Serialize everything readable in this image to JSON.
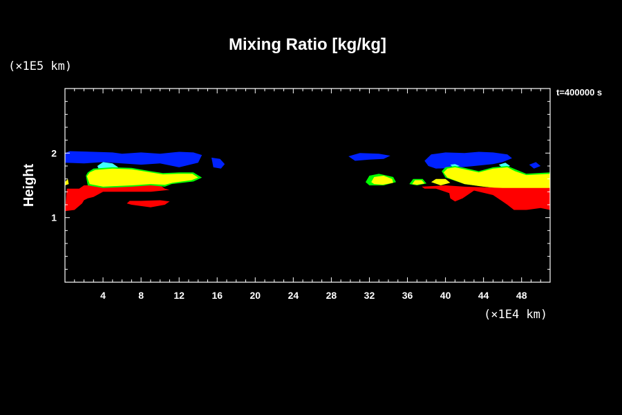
{
  "chart_data": {
    "type": "heatmap",
    "title": "Mixing Ratio [kg/kg]",
    "xlabel": "",
    "ylabel": "Height",
    "x_unit": "(×1E4 km)",
    "y_unit": "(×1E5 km)",
    "time_label": "t=400000 s",
    "xlim": [
      0,
      51
    ],
    "ylim": [
      0,
      3
    ],
    "x_ticks": [
      4,
      8,
      12,
      16,
      20,
      24,
      28,
      32,
      36,
      40,
      44,
      48
    ],
    "y_ticks": [
      1,
      2
    ],
    "background": "#000000",
    "axis_color": "#ffffff",
    "colors": {
      "blue": "#0022ff",
      "cyan": "#40ffff",
      "green": "#00ff00",
      "yellow": "#ffff00",
      "red": "#ff0000"
    },
    "regions": [
      {
        "color": "red",
        "points": [
          [
            0,
            1.1
          ],
          [
            0.2,
            1.45
          ],
          [
            1.5,
            1.45
          ],
          [
            2,
            1.5
          ],
          [
            10,
            1.5
          ],
          [
            10.5,
            1.45
          ],
          [
            11,
            1.43
          ],
          [
            9,
            1.4
          ],
          [
            6,
            1.4
          ],
          [
            4,
            1.4
          ],
          [
            3,
            1.32
          ],
          [
            2.4,
            1.3
          ],
          [
            2,
            1.27
          ],
          [
            1.8,
            1.22
          ],
          [
            1,
            1.12
          ]
        ]
      },
      {
        "color": "red",
        "points": [
          [
            6.5,
            1.22
          ],
          [
            7,
            1.2
          ],
          [
            9,
            1.16
          ],
          [
            10.5,
            1.2
          ],
          [
            11,
            1.25
          ],
          [
            10,
            1.27
          ],
          [
            8,
            1.26
          ],
          [
            6.8,
            1.26
          ]
        ]
      },
      {
        "color": "blue",
        "points": [
          [
            0,
            2
          ],
          [
            0.5,
            2.03
          ],
          [
            3,
            2.02
          ],
          [
            5,
            2.01
          ],
          [
            6,
            1.99
          ],
          [
            8,
            2.01
          ],
          [
            10,
            1.99
          ],
          [
            12,
            2.02
          ],
          [
            13.5,
            2.01
          ],
          [
            14.4,
            1.97
          ],
          [
            14,
            1.85
          ],
          [
            12,
            1.78
          ],
          [
            10,
            1.84
          ],
          [
            8,
            1.82
          ],
          [
            6,
            1.84
          ],
          [
            4,
            1.86
          ],
          [
            2,
            1.84
          ],
          [
            0,
            1.85
          ]
        ]
      },
      {
        "color": "blue",
        "points": [
          [
            15.4,
            1.93
          ],
          [
            16.3,
            1.91
          ],
          [
            16.8,
            1.83
          ],
          [
            16.4,
            1.76
          ],
          [
            15.6,
            1.78
          ]
        ]
      },
      {
        "color": "cyan",
        "points": [
          [
            3.4,
            1.8
          ],
          [
            4,
            1.86
          ],
          [
            5,
            1.84
          ],
          [
            5.6,
            1.78
          ],
          [
            4.5,
            1.74
          ],
          [
            3.6,
            1.74
          ]
        ]
      },
      {
        "color": "green",
        "points": [
          [
            2.2,
            1.65
          ],
          [
            2.4,
            1.7
          ],
          [
            3,
            1.76
          ],
          [
            5,
            1.78
          ],
          [
            7,
            1.77
          ],
          [
            9,
            1.72
          ],
          [
            10.3,
            1.69
          ],
          [
            12,
            1.7
          ],
          [
            13.5,
            1.7
          ],
          [
            14.4,
            1.62
          ],
          [
            13.5,
            1.56
          ],
          [
            11.2,
            1.52
          ],
          [
            10.5,
            1.48
          ],
          [
            9,
            1.5
          ],
          [
            7,
            1.48
          ],
          [
            4,
            1.46
          ],
          [
            2.4,
            1.5
          ]
        ]
      },
      {
        "color": "yellow",
        "points": [
          [
            2.3,
            1.64
          ],
          [
            2.6,
            1.7
          ],
          [
            3.2,
            1.74
          ],
          [
            5,
            1.76
          ],
          [
            7,
            1.75
          ],
          [
            9,
            1.7
          ],
          [
            10.3,
            1.67
          ],
          [
            12,
            1.68
          ],
          [
            13.4,
            1.68
          ],
          [
            14,
            1.62
          ],
          [
            13.3,
            1.58
          ],
          [
            11.3,
            1.54
          ],
          [
            10.5,
            1.51
          ],
          [
            9,
            1.52
          ],
          [
            7,
            1.5
          ],
          [
            4,
            1.48
          ],
          [
            2.6,
            1.52
          ]
        ]
      },
      {
        "color": "yellow",
        "points": [
          [
            0,
            1.55
          ],
          [
            0.3,
            1.6
          ],
          [
            0.4,
            1.52
          ],
          [
            0,
            1.5
          ]
        ]
      },
      {
        "color": "blue",
        "points": [
          [
            29.8,
            1.95
          ],
          [
            31,
            2
          ],
          [
            33,
            1.99
          ],
          [
            34.2,
            1.96
          ],
          [
            33.5,
            1.91
          ],
          [
            32,
            1.9
          ],
          [
            30.5,
            1.88
          ]
        ]
      },
      {
        "color": "blue",
        "points": [
          [
            37.8,
            1.88
          ],
          [
            38.5,
            1.98
          ],
          [
            40,
            2.01
          ],
          [
            42,
            2
          ],
          [
            43.5,
            2.02
          ],
          [
            45,
            2.01
          ],
          [
            46.5,
            1.98
          ],
          [
            47,
            1.92
          ],
          [
            46,
            1.86
          ],
          [
            45,
            1.83
          ],
          [
            43,
            1.8
          ],
          [
            41,
            1.77
          ],
          [
            39,
            1.76
          ],
          [
            38.2,
            1.8
          ]
        ]
      },
      {
        "color": "blue",
        "points": [
          [
            48.8,
            1.82
          ],
          [
            49.5,
            1.86
          ],
          [
            50,
            1.8
          ],
          [
            49.3,
            1.76
          ]
        ]
      },
      {
        "color": "cyan",
        "points": [
          [
            40.5,
            1.82
          ],
          [
            41,
            1.83
          ],
          [
            41.5,
            1.8
          ],
          [
            40.8,
            1.78
          ]
        ]
      },
      {
        "color": "cyan",
        "points": [
          [
            45.6,
            1.82
          ],
          [
            46.3,
            1.85
          ],
          [
            46.8,
            1.8
          ],
          [
            46,
            1.77
          ]
        ]
      },
      {
        "color": "green",
        "points": [
          [
            31.6,
            1.55
          ],
          [
            32,
            1.65
          ],
          [
            33,
            1.68
          ],
          [
            34.5,
            1.63
          ],
          [
            34.8,
            1.55
          ],
          [
            33.5,
            1.5
          ],
          [
            32,
            1.5
          ]
        ]
      },
      {
        "color": "yellow",
        "points": [
          [
            32.2,
            1.55
          ],
          [
            32.5,
            1.63
          ],
          [
            33.5,
            1.65
          ],
          [
            34.4,
            1.6
          ],
          [
            34.5,
            1.54
          ],
          [
            33.4,
            1.51
          ],
          [
            32.5,
            1.52
          ]
        ]
      },
      {
        "color": "green",
        "points": [
          [
            36.2,
            1.52
          ],
          [
            36.6,
            1.6
          ],
          [
            37.6,
            1.6
          ],
          [
            38,
            1.53
          ],
          [
            37,
            1.5
          ]
        ]
      },
      {
        "color": "yellow",
        "points": [
          [
            36.5,
            1.52
          ],
          [
            36.8,
            1.58
          ],
          [
            37.5,
            1.58
          ],
          [
            37.8,
            1.53
          ],
          [
            37,
            1.51
          ]
        ]
      },
      {
        "color": "green",
        "points": [
          [
            39.6,
            1.72
          ],
          [
            40,
            1.78
          ],
          [
            41,
            1.8
          ],
          [
            42,
            1.77
          ],
          [
            43.5,
            1.72
          ],
          [
            45,
            1.78
          ],
          [
            46.5,
            1.8
          ],
          [
            47.5,
            1.74
          ],
          [
            48.5,
            1.68
          ],
          [
            51,
            1.7
          ],
          [
            51,
            1.45
          ],
          [
            48,
            1.45
          ],
          [
            46,
            1.45
          ],
          [
            44,
            1.48
          ],
          [
            42,
            1.52
          ],
          [
            40,
            1.62
          ]
        ]
      },
      {
        "color": "yellow",
        "points": [
          [
            39.8,
            1.7
          ],
          [
            40.2,
            1.76
          ],
          [
            41,
            1.78
          ],
          [
            42,
            1.75
          ],
          [
            43.5,
            1.7
          ],
          [
            45,
            1.76
          ],
          [
            46.5,
            1.78
          ],
          [
            47.3,
            1.72
          ],
          [
            48.5,
            1.66
          ],
          [
            51,
            1.68
          ],
          [
            51,
            1.45
          ],
          [
            48,
            1.45
          ],
          [
            46,
            1.45
          ],
          [
            44,
            1.48
          ],
          [
            42,
            1.52
          ],
          [
            40.2,
            1.62
          ]
        ]
      },
      {
        "color": "yellow",
        "points": [
          [
            38.5,
            1.55
          ],
          [
            39,
            1.6
          ],
          [
            40,
            1.6
          ],
          [
            40.5,
            1.54
          ],
          [
            39.5,
            1.5
          ]
        ]
      },
      {
        "color": "red",
        "points": [
          [
            37.5,
            1.48
          ],
          [
            40,
            1.5
          ],
          [
            42,
            1.48
          ],
          [
            44,
            1.47
          ],
          [
            46,
            1.46
          ],
          [
            48,
            1.46
          ],
          [
            51,
            1.46
          ],
          [
            51,
            1.12
          ],
          [
            50,
            1.15
          ],
          [
            48.5,
            1.12
          ],
          [
            47.2,
            1.12
          ],
          [
            46.5,
            1.2
          ],
          [
            46,
            1.25
          ],
          [
            45,
            1.35
          ],
          [
            43,
            1.42
          ],
          [
            41.8,
            1.3
          ],
          [
            41,
            1.25
          ],
          [
            40.5,
            1.3
          ],
          [
            40.4,
            1.38
          ],
          [
            39,
            1.45
          ],
          [
            37.8,
            1.45
          ]
        ]
      }
    ]
  }
}
